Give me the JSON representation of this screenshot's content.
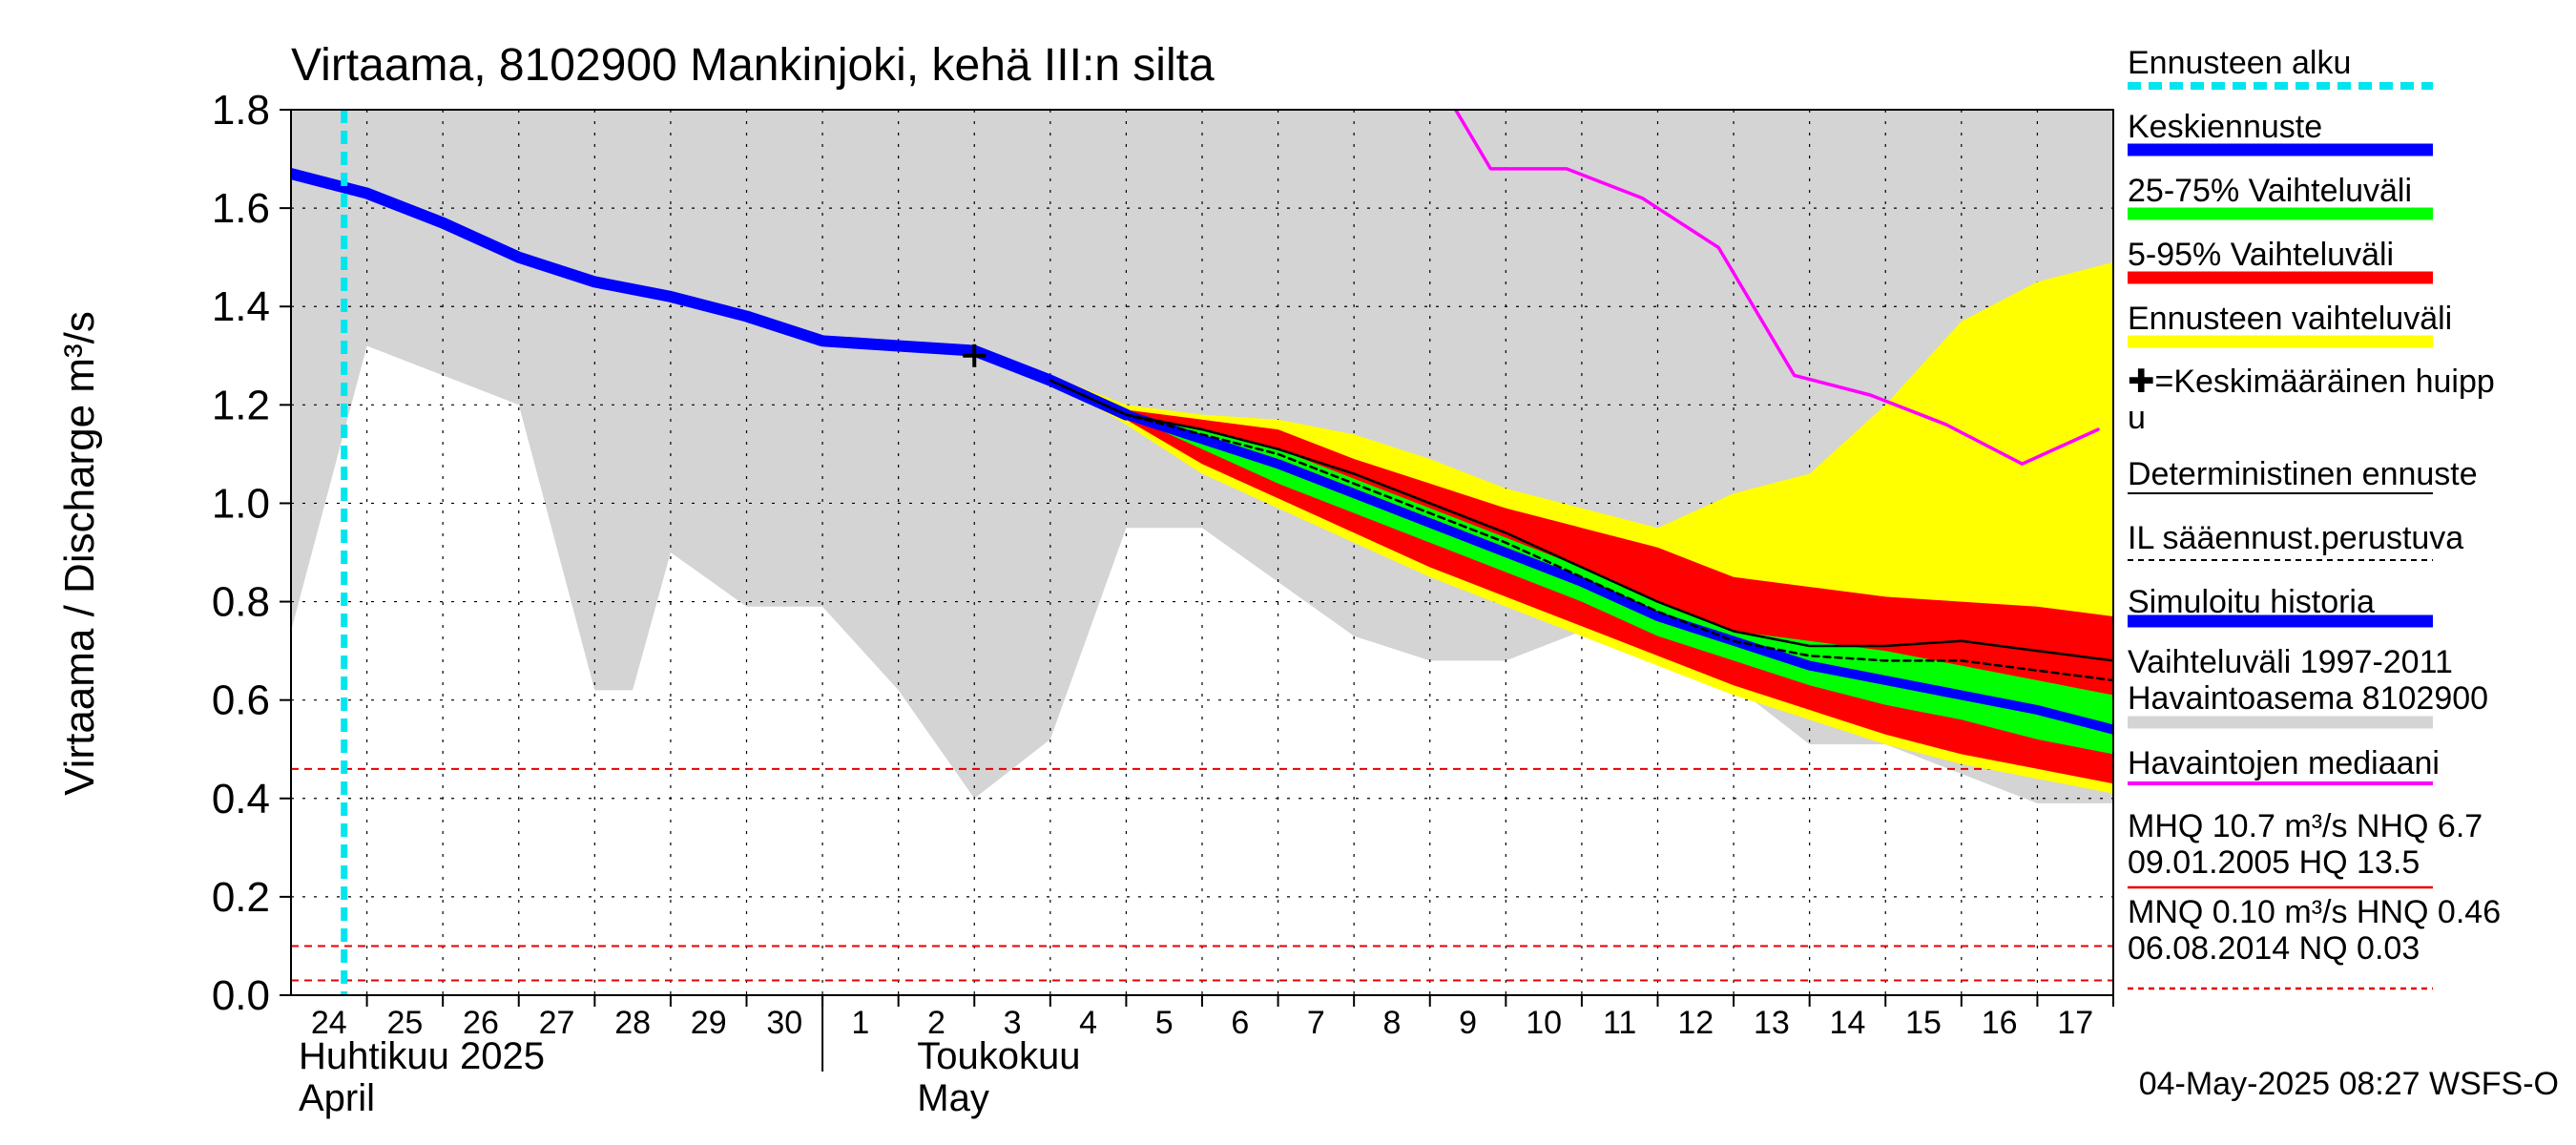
{
  "chart_data": {
    "type": "line",
    "title": "Virtaama, 8102900 Mankinjoki, kehä III:n silta",
    "ylabel": "Virtaama / Discharge    m³/s",
    "ylim": [
      0,
      1.8
    ],
    "yticks": [
      "0.0",
      "0.2",
      "0.4",
      "0.6",
      "0.8",
      "1.0",
      "1.2",
      "1.4",
      "1.6",
      "1.8"
    ],
    "x_days": [
      24,
      25,
      26,
      27,
      28,
      29,
      30,
      1,
      2,
      3,
      4,
      5,
      6,
      7,
      8,
      9,
      10,
      11,
      12,
      13,
      14,
      15,
      16,
      17
    ],
    "month_labels": [
      {
        "line1": "Huhtikuu  2025",
        "line2": "April"
      },
      {
        "line1": "Toukokuu",
        "line2": "May"
      }
    ],
    "forecast_start": 23.7,
    "hist_range": {
      "x": [
        23.0,
        24.0,
        25.0,
        26.0,
        27.0,
        27.5,
        28.0,
        29.0,
        30.0,
        31.0,
        32.0,
        33.0,
        34.0,
        35.0,
        36.0,
        37.0,
        38.0,
        39.0,
        40.0,
        41.0,
        42.0,
        43.0,
        44.0,
        45.0,
        46.0,
        47.0
      ],
      "lo": [
        0.74,
        1.32,
        1.26,
        1.2,
        0.62,
        0.62,
        0.9,
        0.79,
        0.79,
        0.62,
        0.4,
        0.52,
        0.95,
        0.95,
        0.84,
        0.73,
        0.68,
        0.68,
        0.74,
        0.7,
        0.63,
        0.51,
        0.51,
        0.45,
        0.39,
        0.39
      ],
      "hi": 1.8
    },
    "series": [
      {
        "name": "Simuloitu historia",
        "color": "#0000ff",
        "x": [
          23.0,
          24.0,
          25.0,
          26.0,
          27.0,
          28.0,
          29.0,
          30.0,
          31.0,
          32.0,
          33.0,
          34.0
        ],
        "y": [
          1.67,
          1.63,
          1.57,
          1.5,
          1.45,
          1.42,
          1.38,
          1.33,
          1.32,
          1.31,
          1.25,
          1.18
        ]
      },
      {
        "name": "Keskiennuste",
        "color": "#0000ff",
        "x": [
          33.0,
          34.0,
          35.0,
          36.0,
          37.0,
          38.0,
          39.0,
          40.0,
          41.0,
          42.0,
          43.0,
          44.0,
          45.0,
          46.0,
          47.0
        ],
        "y": [
          1.25,
          1.18,
          1.13,
          1.08,
          1.02,
          0.96,
          0.9,
          0.84,
          0.77,
          0.72,
          0.67,
          0.64,
          0.61,
          0.58,
          0.54
        ]
      },
      {
        "name": "Deterministinen ennuste",
        "color": "#000000",
        "x": [
          33.0,
          34.0,
          35.0,
          36.0,
          37.0,
          38.0,
          39.0,
          40.0,
          41.0,
          42.0,
          43.0,
          44.0,
          45.0,
          46.0,
          47.0
        ],
        "y": [
          1.25,
          1.18,
          1.15,
          1.11,
          1.06,
          1.0,
          0.94,
          0.87,
          0.8,
          0.74,
          0.71,
          0.71,
          0.72,
          0.7,
          0.68
        ]
      },
      {
        "name": "IL sääennust.perustuva",
        "color": "#000000",
        "x": [
          33.0,
          34.0,
          35.0,
          36.0,
          37.0,
          38.0,
          39.0,
          40.0,
          41.0,
          42.0,
          43.0,
          44.0,
          45.0,
          46.0,
          47.0
        ],
        "y": [
          1.25,
          1.18,
          1.14,
          1.1,
          1.04,
          0.98,
          0.92,
          0.85,
          0.78,
          0.72,
          0.69,
          0.68,
          0.68,
          0.66,
          0.64
        ]
      },
      {
        "name": "Havaintojen mediaani",
        "color": "#ff00ff",
        "x": [
          38.3,
          38.8,
          39.8,
          40.8,
          41.8,
          42.8,
          43.8,
          44.8,
          45.8,
          46.8
        ],
        "y": [
          1.81,
          1.68,
          1.68,
          1.62,
          1.52,
          1.26,
          1.22,
          1.16,
          1.08,
          1.15
        ]
      }
    ],
    "bands": [
      {
        "name": "Ennusteen vaihteluväli",
        "color": "#ffff00",
        "x": [
          33.0,
          34.0,
          35.0,
          36.0,
          37.0,
          38.0,
          39.0,
          40.0,
          41.0,
          42.0,
          43.0,
          44.0,
          45.0,
          46.0,
          47.0
        ],
        "lo": [
          1.25,
          1.16,
          1.06,
          0.99,
          0.92,
          0.85,
          0.79,
          0.73,
          0.67,
          0.61,
          0.56,
          0.51,
          0.47,
          0.44,
          0.41
        ],
        "hi": [
          1.26,
          1.2,
          1.18,
          1.17,
          1.14,
          1.09,
          1.03,
          0.99,
          0.95,
          1.02,
          1.06,
          1.2,
          1.37,
          1.45,
          1.49
        ]
      },
      {
        "name": "5-95% Vaihteluväli",
        "color": "#ff0000",
        "x": [
          33.0,
          34.0,
          35.0,
          36.0,
          37.0,
          38.0,
          39.0,
          40.0,
          41.0,
          42.0,
          43.0,
          44.0,
          45.0,
          46.0,
          47.0
        ],
        "lo": [
          1.25,
          1.17,
          1.08,
          1.01,
          0.94,
          0.87,
          0.81,
          0.75,
          0.69,
          0.63,
          0.58,
          0.53,
          0.49,
          0.46,
          0.43
        ],
        "hi": [
          1.25,
          1.19,
          1.17,
          1.15,
          1.09,
          1.04,
          0.99,
          0.95,
          0.91,
          0.85,
          0.83,
          0.81,
          0.8,
          0.79,
          0.77
        ]
      },
      {
        "name": "25-75% Vaihteluväli",
        "color": "#00ff00",
        "x": [
          33.0,
          34.0,
          35.0,
          36.0,
          37.0,
          38.0,
          39.0,
          40.0,
          41.0,
          42.0,
          43.0,
          44.0,
          45.0,
          46.0,
          47.0
        ],
        "lo": [
          1.25,
          1.18,
          1.11,
          1.04,
          0.98,
          0.92,
          0.86,
          0.8,
          0.73,
          0.68,
          0.63,
          0.59,
          0.56,
          0.52,
          0.49
        ],
        "hi": [
          1.25,
          1.18,
          1.15,
          1.11,
          1.05,
          0.99,
          0.93,
          0.87,
          0.8,
          0.74,
          0.72,
          0.7,
          0.67,
          0.64,
          0.61
        ]
      }
    ],
    "peak_marker": {
      "x": 32.0,
      "y": 1.3
    },
    "thresholds": [
      {
        "y": 0.46,
        "color": "#e60000"
      },
      {
        "y": 0.1,
        "color": "#e60000"
      },
      {
        "y": 0.03,
        "color": "#e60000"
      }
    ],
    "legend": {
      "position": "right",
      "items": [
        {
          "label": "Ennusteen alku",
          "swatch": "dash-cyan"
        },
        {
          "label": "Keskiennuste",
          "swatch": "thick-blue"
        },
        {
          "label": "25-75% Vaihteluväli",
          "swatch": "thick-green"
        },
        {
          "label": "5-95% Vaihteluväli",
          "swatch": "thick-red"
        },
        {
          "label": "Ennusteen vaihteluväli",
          "swatch": "thick-yellow"
        },
        {
          "label": "✚=Keskimääräinen huipp",
          "label2": "u",
          "swatch": "none"
        },
        {
          "label": "Deterministinen ennuste",
          "swatch": "thin-black"
        },
        {
          "label": "IL sääennust.perustuva",
          "swatch": "dash-black"
        },
        {
          "label": "Simuloitu historia",
          "swatch": "thick-blue"
        },
        {
          "label": "Vaihteluväli 1997-2011",
          "label2": " Havaintoasema 8102900",
          "swatch": "thick-gray"
        },
        {
          "label": "Havaintojen mediaani",
          "swatch": "magenta"
        },
        {
          "label": "MHQ 10.7 m³/s NHQ  6.7",
          "label2": "09.01.2005 HQ 13.5",
          "swatch": "thin-red"
        },
        {
          "label": "MNQ 0.10 m³/s HNQ 0.46",
          "label2": "06.08.2014 NQ 0.03",
          "swatch": "dash-red"
        }
      ]
    },
    "footer": "04-May-2025 08:27 WSFS-O",
    "colors": {
      "grid": "#000000",
      "hist_band": "#d4d4d4",
      "forecast_start": "#00e5ee"
    }
  }
}
